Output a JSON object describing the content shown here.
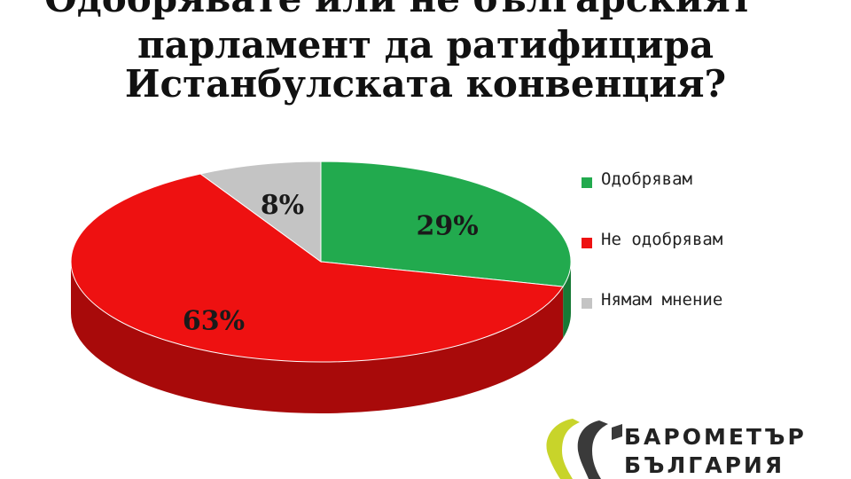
{
  "chart_data": {
    "type": "pie",
    "title_lines": [
      "Одобрявате или не българският",
      "парламент да ратифицира",
      "Истанбулската конвенция?"
    ],
    "categories": [
      "Одобрявам",
      "Не одобрявам",
      "Нямам мнение"
    ],
    "values": [
      29,
      63,
      8
    ],
    "data_labels": [
      "29%",
      "63%",
      "8%"
    ],
    "colors": [
      "#22aa4e",
      "#ee1111",
      "#c4c4c4"
    ],
    "side_colors": [
      "#177a36",
      "#a80a0a",
      "#8e8e8e"
    ],
    "legend_position": "right"
  },
  "logo": {
    "line1": "БАРОМЕТЪР",
    "line2": "БЪЛГАРИЯ"
  }
}
